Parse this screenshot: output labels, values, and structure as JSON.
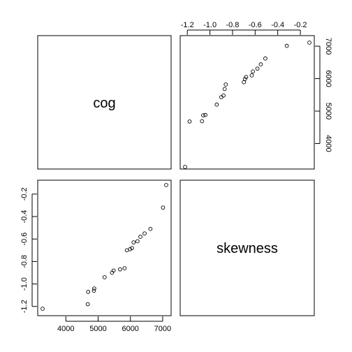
{
  "chart_data": {
    "type": "scatter",
    "variables": [
      "cog",
      "skewness"
    ],
    "points": [
      {
        "cog": 3280,
        "skewness": -1.22
      },
      {
        "cog": 4680,
        "skewness": -1.18
      },
      {
        "cog": 4690,
        "skewness": -1.07
      },
      {
        "cog": 4870,
        "skewness": -1.06
      },
      {
        "cog": 4880,
        "skewness": -1.04
      },
      {
        "cog": 5200,
        "skewness": -0.94
      },
      {
        "cog": 5430,
        "skewness": -0.9
      },
      {
        "cog": 5480,
        "skewness": -0.88
      },
      {
        "cog": 5680,
        "skewness": -0.87
      },
      {
        "cog": 5820,
        "skewness": -0.86
      },
      {
        "cog": 5890,
        "skewness": -0.7
      },
      {
        "cog": 5990,
        "skewness": -0.69
      },
      {
        "cog": 6050,
        "skewness": -0.68
      },
      {
        "cog": 6100,
        "skewness": -0.63
      },
      {
        "cog": 6220,
        "skewness": -0.62
      },
      {
        "cog": 6310,
        "skewness": -0.58
      },
      {
        "cog": 6440,
        "skewness": -0.55
      },
      {
        "cog": 6620,
        "skewness": -0.51
      },
      {
        "cog": 7010,
        "skewness": -0.32
      },
      {
        "cog": 7110,
        "skewness": -0.12
      }
    ],
    "axes": {
      "cog": {
        "ticks": [
          4000,
          5000,
          6000,
          7000
        ],
        "tick_labels": [
          "4000",
          "5000",
          "6000",
          "7000"
        ],
        "range": [
          3280,
          7110
        ]
      },
      "skewness": {
        "ticks": [
          -1.2,
          -1.0,
          -0.8,
          -0.6,
          -0.4,
          -0.2
        ],
        "tick_labels": [
          "-1.2",
          "-1.0",
          "-0.8",
          "-0.6",
          "-0.4",
          "-0.2"
        ],
        "range": [
          -1.22,
          -0.12
        ]
      }
    },
    "diagonal_labels": [
      "cog",
      "skewness"
    ],
    "top_tick_labels": [
      "-1.2",
      "-1.0",
      "-0.8",
      "-0.6",
      "-0.4",
      "-0.2"
    ],
    "right_tick_labels": [
      "4000",
      "5000",
      "6000",
      "7000"
    ],
    "grid": false
  }
}
